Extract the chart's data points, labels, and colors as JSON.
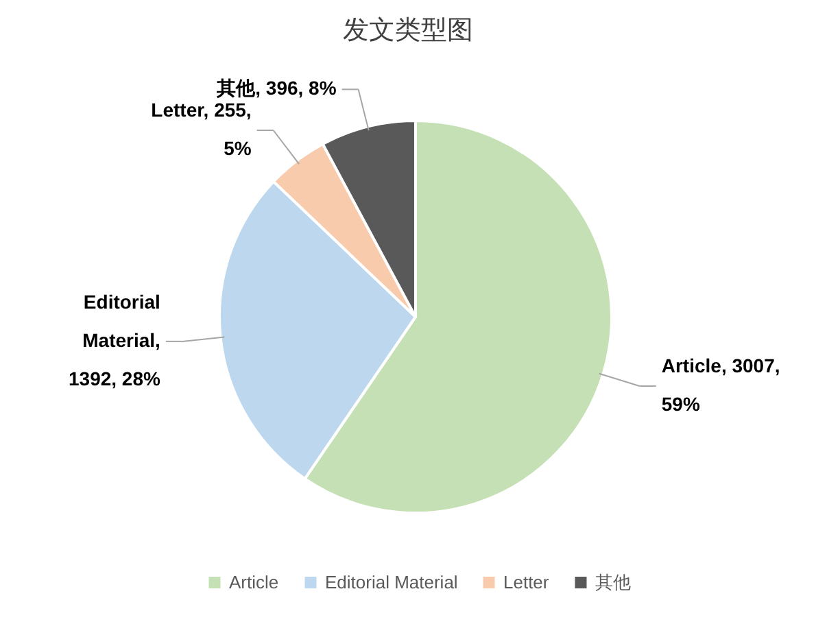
{
  "chart_data": {
    "type": "pie",
    "title": "发文类型图",
    "categories": [
      "Article",
      "Editorial Material",
      "Letter",
      "其他"
    ],
    "values": [
      3007,
      1392,
      255,
      396
    ],
    "colors": [
      "#c5e0b4",
      "#bdd7ee",
      "#f8cbad",
      "#595959"
    ],
    "value_labels": [
      "Article, 3007,\n59%",
      "Editorial\nMaterial,\n1392, 28%",
      "Letter, 255,\n5%",
      "其他, 396, 8%"
    ],
    "legend": "bottom"
  }
}
